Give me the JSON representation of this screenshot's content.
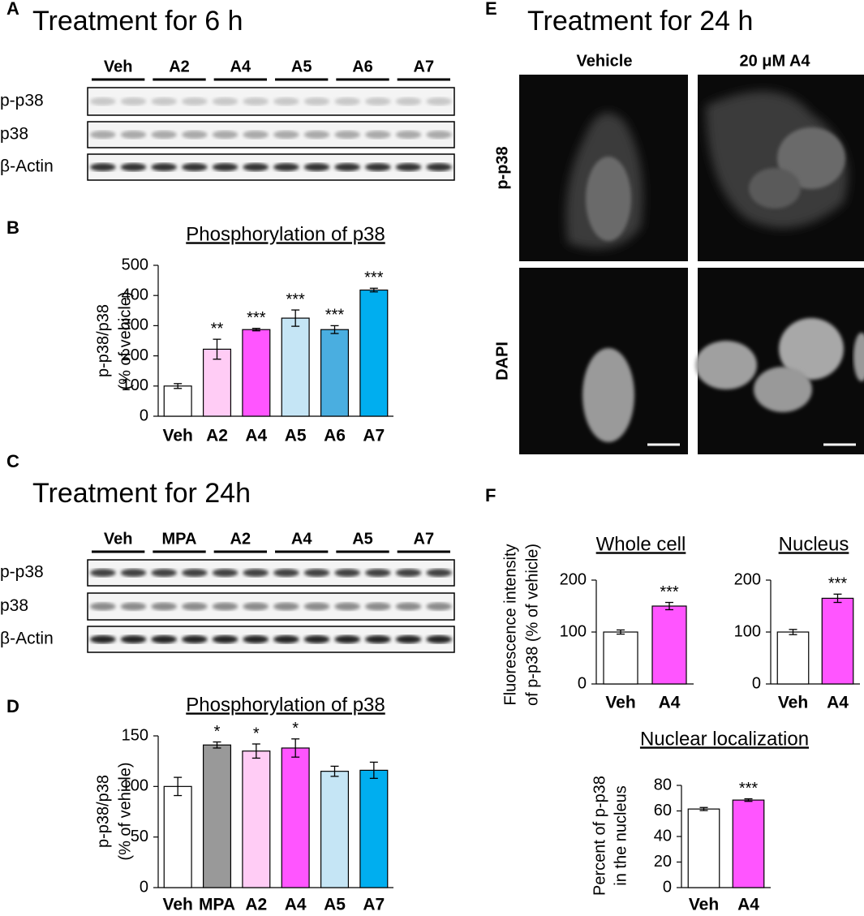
{
  "panel_labels": [
    "A",
    "B",
    "C",
    "D",
    "E",
    "F"
  ],
  "blots": [
    {
      "title": "Treatment for 6 h",
      "groups": [
        "Veh",
        "A2",
        "A4",
        "A5",
        "A6",
        "A7"
      ],
      "rows": [
        "p-p38",
        "p38",
        "β-Actin"
      ]
    },
    {
      "title": "Treatment for 24h",
      "groups": [
        "Veh",
        "MPA",
        "A2",
        "A4",
        "A5",
        "A7"
      ],
      "rows": [
        "p-p38",
        "p38",
        "β-Actin"
      ]
    }
  ],
  "micrographs": {
    "title": "Treatment for 24 h",
    "columns": [
      "Vehicle",
      "20 μM A4"
    ],
    "rows": [
      "p-p38",
      "DAPI"
    ]
  },
  "chart_data": [
    {
      "type": "bar",
      "title": "Phosphorylation of p38",
      "ylabel": [
        "p-p38/p38",
        "(% of vehicle)"
      ],
      "categories": [
        "Veh",
        "A2",
        "A4",
        "A5",
        "A6",
        "A7"
      ],
      "values": [
        100,
        222,
        287,
        325,
        287,
        418
      ],
      "errors": [
        8,
        33,
        4,
        27,
        13,
        6
      ],
      "colors": [
        "#ffffff",
        "#ffccf5",
        "#ff55ff",
        "#c5e5f5",
        "#4aaee0",
        "#00aeef"
      ],
      "annotations": [
        null,
        "**",
        "***",
        "***",
        "***",
        "***"
      ],
      "ylim": [
        0,
        500
      ],
      "yticks": [
        0,
        100,
        200,
        300,
        400,
        500
      ]
    },
    {
      "type": "bar",
      "title": "Phosphorylation of p38",
      "ylabel": [
        "p-p38/p38",
        "(% of vehicle)"
      ],
      "categories": [
        "Veh",
        "MPA",
        "A2",
        "A4",
        "A5",
        "A7"
      ],
      "values": [
        100,
        141,
        135,
        138,
        115,
        116
      ],
      "errors": [
        9,
        3,
        7,
        9,
        5,
        8
      ],
      "colors": [
        "#ffffff",
        "#999999",
        "#ffccf5",
        "#ff55ff",
        "#c5e5f5",
        "#00aeef"
      ],
      "annotations": [
        null,
        "*",
        "*",
        "*",
        null,
        null
      ],
      "ylim": [
        0,
        150
      ],
      "yticks": [
        0,
        50,
        100,
        150
      ]
    },
    {
      "type": "bar",
      "title": "Whole cell",
      "ylabel": [
        "Fluorescence intensity",
        "of p-p38 (% of vehicle)"
      ],
      "categories": [
        "Veh",
        "A4"
      ],
      "values": [
        100,
        150
      ],
      "errors": [
        4,
        7
      ],
      "colors": [
        "#ffffff",
        "#ff55ff"
      ],
      "annotations": [
        null,
        "***"
      ],
      "ylim": [
        0,
        200
      ],
      "yticks": [
        0,
        100,
        200
      ]
    },
    {
      "type": "bar",
      "title": "Nucleus",
      "categories": [
        "Veh",
        "A4"
      ],
      "values": [
        100,
        165
      ],
      "errors": [
        5,
        8
      ],
      "colors": [
        "#ffffff",
        "#ff55ff"
      ],
      "annotations": [
        null,
        "***"
      ],
      "ylim": [
        0,
        200
      ],
      "yticks": [
        0,
        100,
        200
      ]
    },
    {
      "type": "bar",
      "title": "Nuclear localization",
      "ylabel": [
        "Percent of p-p38",
        "in the nucleus"
      ],
      "categories": [
        "Veh",
        "A4"
      ],
      "values": [
        61.5,
        68.5
      ],
      "errors": [
        1.2,
        1
      ],
      "colors": [
        "#ffffff",
        "#ff55ff"
      ],
      "annotations": [
        null,
        "***"
      ],
      "ylim": [
        0,
        80
      ],
      "yticks": [
        0,
        20,
        40,
        60,
        80
      ]
    }
  ]
}
